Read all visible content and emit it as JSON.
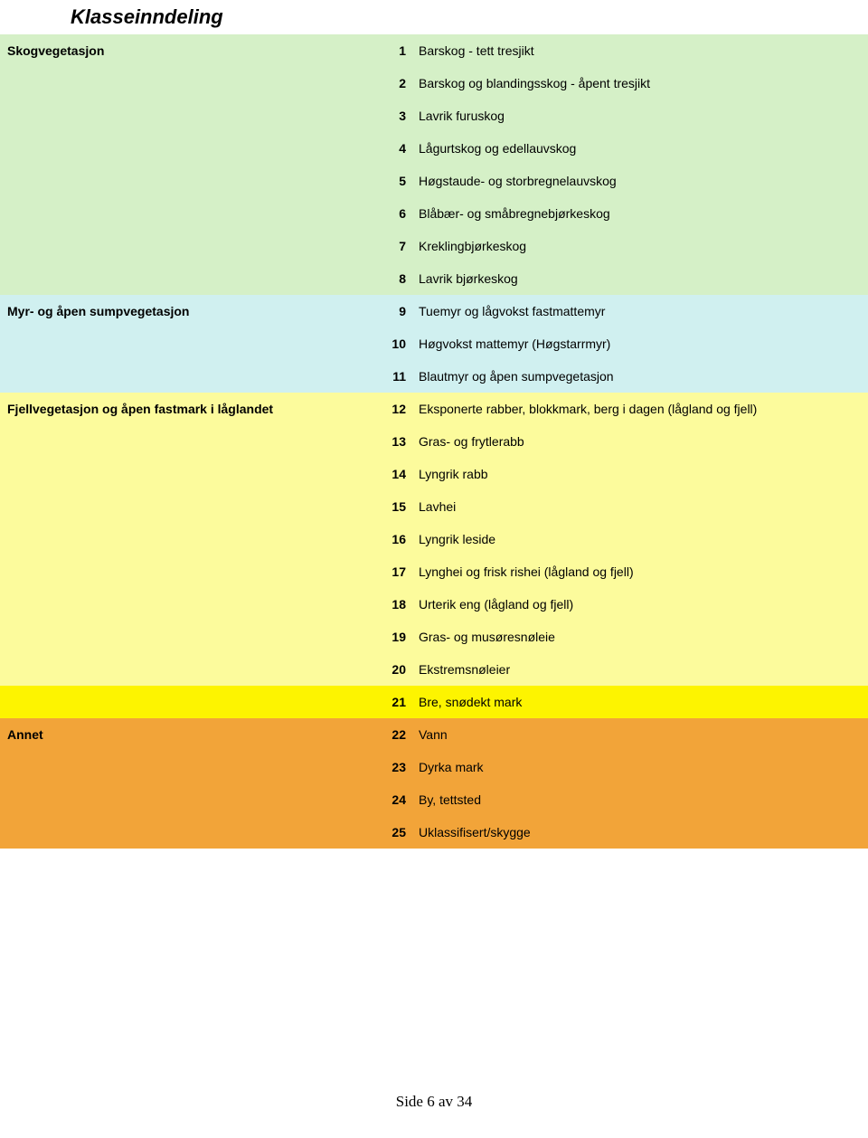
{
  "title": "Klasseinndeling",
  "footer": "Side 6 av 34",
  "colors": {
    "group1": "#d5f0c7",
    "group2": "#d0f0f0",
    "group3": "#fcfb9c",
    "group3_alt": "#fdf400",
    "group4": "#f2a439",
    "text": "#000000"
  },
  "groups": [
    {
      "label": "Skogvegetasjon",
      "bg": "#d5f0c7",
      "rows": [
        {
          "num": "1",
          "desc": "Barskog - tett tresjikt"
        },
        {
          "num": "2",
          "desc": "Barskog og blandingsskog - åpent tresjikt"
        },
        {
          "num": "3",
          "desc": "Lavrik furuskog"
        },
        {
          "num": "4",
          "desc": "Lågurtskog og edellauvskog"
        },
        {
          "num": "5",
          "desc": "Høgstaude- og storbregnelauvskog"
        },
        {
          "num": "6",
          "desc": "Blåbær- og småbregnebjørkeskog"
        },
        {
          "num": "7",
          "desc": "Kreklingbjørkeskog"
        },
        {
          "num": "8",
          "desc": "Lavrik bjørkeskog"
        }
      ]
    },
    {
      "label": "Myr- og åpen sumpvegetasjon",
      "bg": "#d0f0f0",
      "rows": [
        {
          "num": "9",
          "desc": "Tuemyr og lågvokst fastmattemyr"
        },
        {
          "num": "10",
          "desc": "Høgvokst mattemyr (Høgstarrmyr)"
        },
        {
          "num": "11",
          "desc": "Blautmyr og åpen sumpvegetasjon"
        }
      ]
    },
    {
      "label": "Fjellvegetasjon og åpen fastmark i låglandet",
      "bg": "#fcfb9c",
      "alt_bg": "#fdf400",
      "alt_from": 9,
      "rows": [
        {
          "num": "12",
          "desc": "Eksponerte rabber, blokkmark, berg i dagen (lågland og fjell)"
        },
        {
          "num": "13",
          "desc": "Gras- og frytlerabb"
        },
        {
          "num": "14",
          "desc": "Lyngrik rabb"
        },
        {
          "num": "15",
          "desc": "Lavhei"
        },
        {
          "num": "16",
          "desc": "Lyngrik leside"
        },
        {
          "num": "17",
          "desc": "Lynghei og frisk rishei (lågland og fjell)"
        },
        {
          "num": "18",
          "desc": "Urterik eng (lågland og fjell)"
        },
        {
          "num": "19",
          "desc": "Gras- og musøresnøleie"
        },
        {
          "num": "20",
          "desc": "Ekstremsnøleier"
        },
        {
          "num": "21",
          "desc": "Bre, snødekt mark"
        }
      ]
    },
    {
      "label": "Annet",
      "bg": "#f2a439",
      "rows": [
        {
          "num": "22",
          "desc": "Vann"
        },
        {
          "num": "23",
          "desc": "Dyrka mark"
        },
        {
          "num": "24",
          "desc": "By, tettsted"
        },
        {
          "num": "25",
          "desc": "Uklassifisert/skygge"
        }
      ]
    }
  ]
}
